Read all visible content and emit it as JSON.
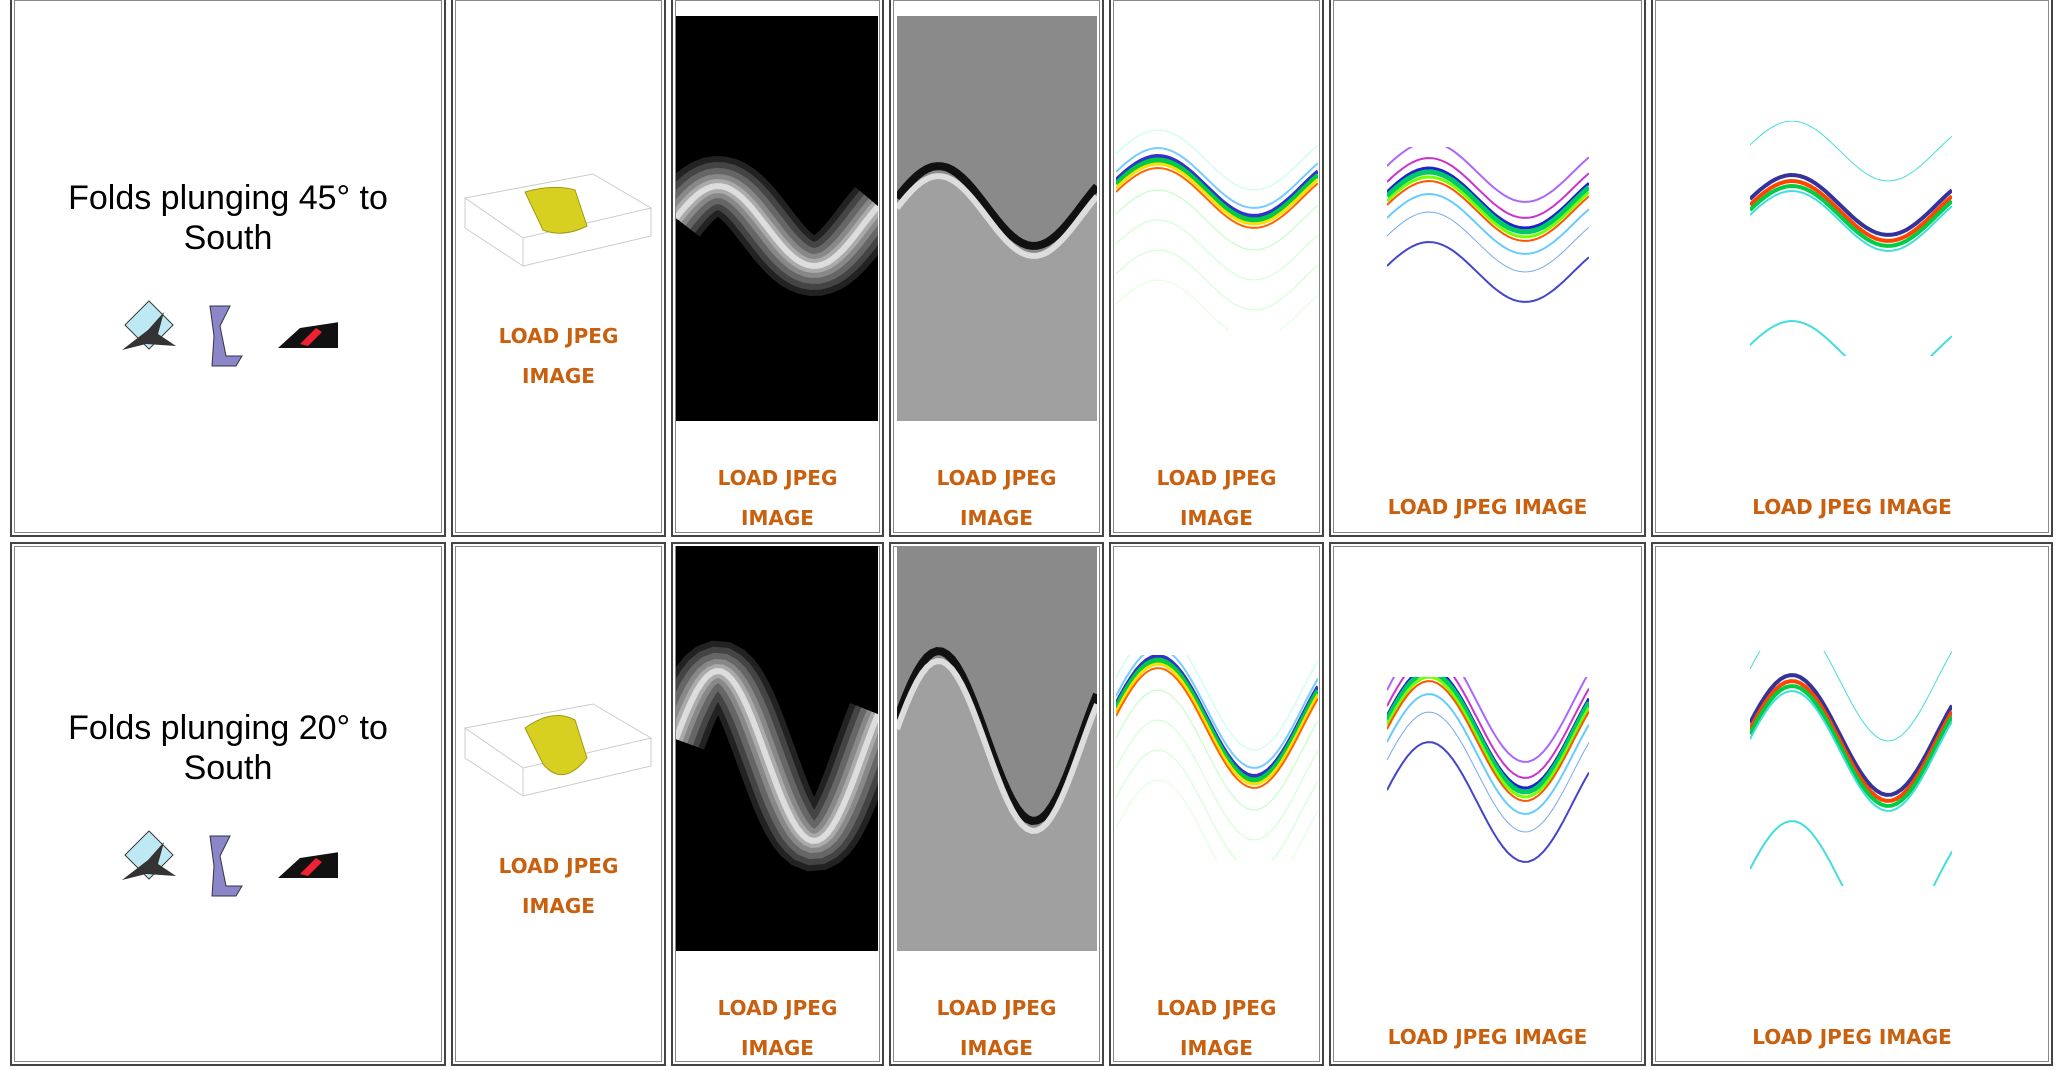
{
  "rows": [
    {
      "label": "Folds plunging 45° to South",
      "links": [
        "LOAD JPEG IMAGE",
        "LOAD JPEG IMAGE",
        "LOAD JPEG IMAGE",
        "LOAD JPEG IMAGE",
        "LOAD JPEG IMAGE",
        "LOAD JPEG IMAGE"
      ]
    },
    {
      "label": "Folds plunging 20° to South",
      "links": [
        "LOAD JPEG IMAGE",
        "LOAD JPEG IMAGE",
        "LOAD JPEG IMAGE",
        "LOAD JPEG IMAGE",
        "LOAD JPEG IMAGE",
        "LOAD JPEG IMAGE"
      ]
    }
  ]
}
